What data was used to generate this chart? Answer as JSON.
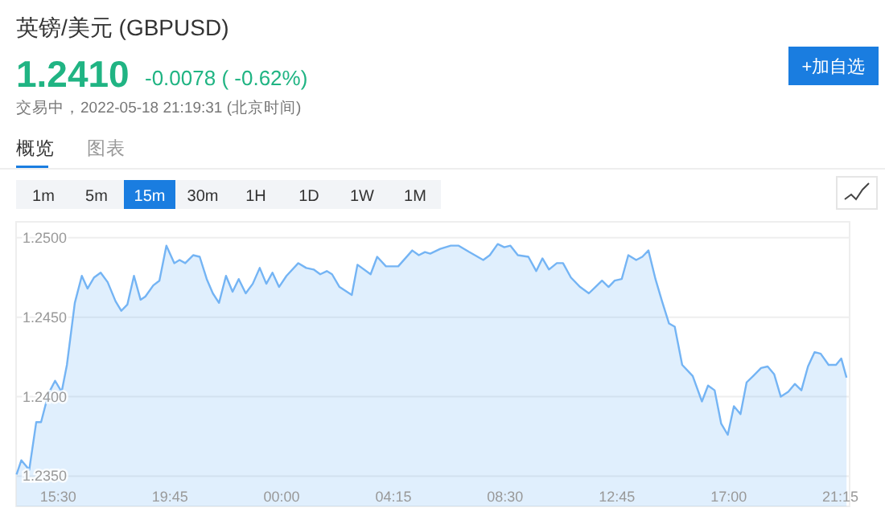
{
  "chart_data": {
    "type": "area",
    "title": "英镑/美元  (GBPUSD)",
    "annotations": [
      "1.2410",
      "-0.0078 ( -0.62%)",
      "交易中，2022-05-18 21:19:31  (北京时间)",
      "+加自选",
      "概览",
      "图表",
      "1m",
      "5m",
      "15m",
      "30m",
      "1H",
      "1D",
      "1W",
      "1M"
    ],
    "series": [
      {
        "color": "#74b4f4",
        "x": [
          "2022-05-17T13:55",
          "2022-05-17T14:06",
          "2022-05-17T14:24",
          "2022-05-17T14:40",
          "2022-05-17T14:51",
          "2022-05-17T15:08",
          "2022-05-17T15:23",
          "2022-05-17T15:38",
          "2022-05-17T15:50",
          "2022-05-17T16:08",
          "2022-05-17T16:24",
          "2022-05-17T16:37",
          "2022-05-17T16:52",
          "2022-05-17T17:07",
          "2022-05-17T17:23",
          "2022-05-17T17:41",
          "2022-05-17T17:54",
          "2022-05-17T18:08",
          "2022-05-17T18:23",
          "2022-05-17T18:38",
          "2022-05-17T18:49",
          "2022-05-17T19:07",
          "2022-05-17T19:21",
          "2022-05-17T19:37",
          "2022-05-17T19:55",
          "2022-05-17T20:07",
          "2022-05-17T20:20",
          "2022-05-17T20:38",
          "2022-05-17T20:53",
          "2022-05-17T21:09",
          "2022-05-17T21:23",
          "2022-05-17T21:37",
          "2022-05-17T21:53",
          "2022-05-17T22:08",
          "2022-05-17T22:22",
          "2022-05-17T22:38",
          "2022-05-17T22:54",
          "2022-05-17T23:10",
          "2022-05-17T23:25",
          "2022-05-17T23:39",
          "2022-05-17T23:54",
          "2022-05-18T00:11",
          "2022-05-18T00:38",
          "2022-05-18T00:56",
          "2022-05-18T01:13",
          "2022-05-18T01:28",
          "2022-05-18T01:43",
          "2022-05-18T01:55",
          "2022-05-18T02:12",
          "2022-05-18T02:40",
          "2022-05-18T02:53",
          "2022-05-18T03:23",
          "2022-05-18T03:38",
          "2022-05-18T03:58",
          "2022-05-18T04:26",
          "2022-05-18T04:58",
          "2022-05-18T05:13",
          "2022-05-18T05:27",
          "2022-05-18T05:39",
          "2022-05-18T06:02",
          "2022-05-18T06:26",
          "2022-05-18T06:44",
          "2022-05-18T07:08",
          "2022-05-18T07:40",
          "2022-05-18T07:55",
          "2022-05-18T08:13",
          "2022-05-18T08:28",
          "2022-05-18T08:42",
          "2022-05-18T08:59",
          "2022-05-18T09:23",
          "2022-05-18T09:41",
          "2022-05-18T09:55",
          "2022-05-18T10:10",
          "2022-05-18T10:28",
          "2022-05-18T10:42",
          "2022-05-18T11:00",
          "2022-05-18T11:21",
          "2022-05-18T11:41",
          "2022-05-18T11:56",
          "2022-05-18T12:11",
          "2022-05-18T12:26",
          "2022-05-18T12:40",
          "2022-05-18T12:56",
          "2022-05-18T13:11",
          "2022-05-18T13:29",
          "2022-05-18T13:43",
          "2022-05-18T13:57",
          "2022-05-18T14:13",
          "2022-05-18T14:28",
          "2022-05-18T14:44",
          "2022-05-18T14:57",
          "2022-05-18T15:14",
          "2022-05-18T15:38",
          "2022-05-18T15:59",
          "2022-05-18T16:13",
          "2022-05-18T16:28",
          "2022-05-18T16:43",
          "2022-05-18T16:58",
          "2022-05-18T17:12",
          "2022-05-18T17:27",
          "2022-05-18T17:41",
          "2022-05-18T17:56",
          "2022-05-18T18:14",
          "2022-05-18T18:29",
          "2022-05-18T18:44",
          "2022-05-18T18:59",
          "2022-05-18T19:16",
          "2022-05-18T19:31",
          "2022-05-18T19:46",
          "2022-05-18T20:01",
          "2022-05-18T20:16",
          "2022-05-18T20:30",
          "2022-05-18T20:48",
          "2022-05-18T21:05",
          "2022-05-18T21:17",
          "2022-05-18T21:29"
        ],
        "values": [
          1.2351,
          1.236,
          1.2354,
          1.2384,
          1.2384,
          1.2402,
          1.241,
          1.2403,
          1.242,
          1.2459,
          1.2476,
          1.2468,
          1.2475,
          1.2478,
          1.2472,
          1.246,
          1.2454,
          1.2458,
          1.2476,
          1.2461,
          1.2463,
          1.247,
          1.2473,
          1.2495,
          1.2484,
          1.2486,
          1.2484,
          1.2489,
          1.2488,
          1.2474,
          1.2465,
          1.2459,
          1.2476,
          1.2466,
          1.2474,
          1.2465,
          1.2471,
          1.2481,
          1.2471,
          1.2478,
          1.2469,
          1.2476,
          1.2484,
          1.2481,
          1.248,
          1.2477,
          1.2479,
          1.2477,
          1.2469,
          1.2464,
          1.2483,
          1.2477,
          1.2488,
          1.2482,
          1.2482,
          1.2492,
          1.2489,
          1.2491,
          1.249,
          1.2493,
          1.2495,
          1.2495,
          1.2491,
          1.2486,
          1.2489,
          1.2496,
          1.2494,
          1.2495,
          1.2489,
          1.2488,
          1.2479,
          1.2487,
          1.248,
          1.2484,
          1.2484,
          1.2475,
          1.2469,
          1.2465,
          1.2469,
          1.2473,
          1.2469,
          1.2473,
          1.2474,
          1.2489,
          1.2486,
          1.2488,
          1.2492,
          1.2474,
          1.246,
          1.2446,
          1.2444,
          1.242,
          1.2413,
          1.2397,
          1.2407,
          1.2404,
          1.2383,
          1.2376,
          1.2394,
          1.2389,
          1.2409,
          1.2413,
          1.2418,
          1.2419,
          1.2414,
          1.24,
          1.2403,
          1.2408,
          1.2404,
          1.2419,
          1.2428,
          1.2427,
          1.242,
          1.242,
          1.2424,
          1.2412
        ]
      }
    ],
    "xlim": [
      "2022-05-17T13:54",
      "2022-05-18T21:36"
    ],
    "xticks": [
      {
        "value": "2022-05-17T15:30",
        "label": "15:30"
      },
      {
        "value": "2022-05-17T19:45",
        "label": "19:45"
      },
      {
        "value": "2022-05-18T00:00",
        "label": "00:00"
      },
      {
        "value": "2022-05-18T04:15",
        "label": "04:15"
      },
      {
        "value": "2022-05-18T08:30",
        "label": "08:30"
      },
      {
        "value": "2022-05-18T12:45",
        "label": "12:45"
      },
      {
        "value": "2022-05-18T17:00",
        "label": "17:00"
      },
      {
        "value": "2022-05-18T21:15",
        "label": "21:15"
      }
    ],
    "ylim": [
      1.2331,
      1.251
    ],
    "yticks": [
      {
        "value": 1.235,
        "label": "1.2350"
      },
      {
        "value": 1.24,
        "label": "1.2400"
      },
      {
        "value": 1.245,
        "label": "1.2450"
      },
      {
        "value": 1.25,
        "label": "1.2500"
      }
    ],
    "grid": "y"
  }
}
